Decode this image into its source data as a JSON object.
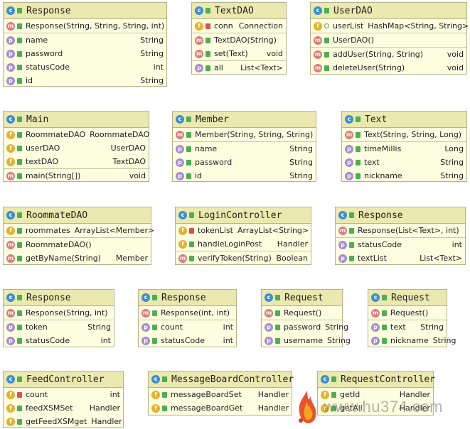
{
  "classes": {
    "response1": {
      "name": "Response",
      "rows": [
        {
          "icon": "m",
          "vis": "pub",
          "name": "Response(String, String, String, int)",
          "type": ""
        },
        {
          "icon": "p",
          "vis": "pub",
          "name": "name",
          "type": "String"
        },
        {
          "icon": "p",
          "vis": "pub",
          "name": "password",
          "type": "String"
        },
        {
          "icon": "p",
          "vis": "pub",
          "name": "statusCode",
          "type": "int"
        },
        {
          "icon": "p",
          "vis": "pub",
          "name": "id",
          "type": "String"
        }
      ]
    },
    "textdao": {
      "name": "TextDAO",
      "rows": [
        {
          "icon": "f",
          "vis": "priv",
          "name": "conn",
          "type": "Connection"
        },
        {
          "icon": "m",
          "vis": "pub",
          "name": "TextDAO(String)",
          "type": ""
        },
        {
          "icon": "m",
          "vis": "pub",
          "name": "set(Text)",
          "type": "void"
        },
        {
          "icon": "p",
          "vis": "pub",
          "name": "all",
          "type": "List<Text>"
        }
      ]
    },
    "userdao": {
      "name": "UserDAO",
      "rows": [
        {
          "icon": "f",
          "vis": "pkg",
          "name": "userList",
          "type": "HashMap<String, String>"
        },
        {
          "icon": "m",
          "vis": "pub",
          "name": "UserDAO()",
          "type": ""
        },
        {
          "icon": "m",
          "vis": "pub",
          "name": "addUser(String, String)",
          "type": "void"
        },
        {
          "icon": "m",
          "vis": "pub",
          "name": "deleteUser(String)",
          "type": "void"
        }
      ]
    },
    "main": {
      "name": "Main",
      "rows": [
        {
          "icon": "f",
          "vis": "pub",
          "name": "RoommateDAO",
          "type": "RoommateDAO"
        },
        {
          "icon": "f",
          "vis": "pub",
          "name": "userDAO",
          "type": "UserDAO"
        },
        {
          "icon": "f",
          "vis": "pub",
          "name": "textDAO",
          "type": "TextDAO"
        },
        {
          "icon": "m",
          "vis": "pub",
          "name": "main(String[])",
          "type": "void"
        }
      ]
    },
    "member": {
      "name": "Member",
      "rows": [
        {
          "icon": "m",
          "vis": "pub",
          "name": "Member(String, String, String)",
          "type": ""
        },
        {
          "icon": "p",
          "vis": "pub",
          "name": "name",
          "type": "String"
        },
        {
          "icon": "p",
          "vis": "pub",
          "name": "password",
          "type": "String"
        },
        {
          "icon": "p",
          "vis": "pub",
          "name": "id",
          "type": "String"
        }
      ]
    },
    "text": {
      "name": "Text",
      "rows": [
        {
          "icon": "m",
          "vis": "pub",
          "name": "Text(String, String, Long)",
          "type": ""
        },
        {
          "icon": "p",
          "vis": "pub",
          "name": "timeMillis",
          "type": "Long"
        },
        {
          "icon": "p",
          "vis": "pub",
          "name": "text",
          "type": "String"
        },
        {
          "icon": "p",
          "vis": "pub",
          "name": "nickname",
          "type": "String"
        }
      ]
    },
    "roommatedao": {
      "name": "RoommateDAO",
      "rows": [
        {
          "icon": "f",
          "vis": "pub",
          "name": "roommates",
          "type": "ArrayList<Member>"
        },
        {
          "icon": "m",
          "vis": "pub",
          "name": "RoommateDAO()",
          "type": ""
        },
        {
          "icon": "m",
          "vis": "pub",
          "name": "getByName(String)",
          "type": "Member"
        }
      ]
    },
    "logincontroller": {
      "name": "LoginController",
      "rows": [
        {
          "icon": "f",
          "vis": "priv",
          "name": "tokenList",
          "type": "ArrayList<String>"
        },
        {
          "icon": "f",
          "vis": "pub",
          "name": "handleLoginPost",
          "type": "Handler"
        },
        {
          "icon": "m",
          "vis": "pub",
          "name": "verifyToken(String)",
          "type": "Boolean"
        }
      ]
    },
    "response2": {
      "name": "Response",
      "rows": [
        {
          "icon": "m",
          "vis": "pub",
          "name": "Response(List<Text>, int)",
          "type": ""
        },
        {
          "icon": "p",
          "vis": "pub",
          "name": "statusCode",
          "type": "int"
        },
        {
          "icon": "p",
          "vis": "pub",
          "name": "textList",
          "type": "List<Text>"
        }
      ]
    },
    "response3": {
      "name": "Response",
      "rows": [
        {
          "icon": "m",
          "vis": "pub",
          "name": "Response(String, int)",
          "type": ""
        },
        {
          "icon": "p",
          "vis": "pub",
          "name": "token",
          "type": "String"
        },
        {
          "icon": "p",
          "vis": "pub",
          "name": "statusCode",
          "type": "int"
        }
      ]
    },
    "response4": {
      "name": "Response",
      "rows": [
        {
          "icon": "m",
          "vis": "pub",
          "name": "Response(int, int)",
          "type": ""
        },
        {
          "icon": "p",
          "vis": "pub",
          "name": "count",
          "type": "int"
        },
        {
          "icon": "p",
          "vis": "pub",
          "name": "statusCode",
          "type": "int"
        }
      ]
    },
    "request1": {
      "name": "Request",
      "rows": [
        {
          "icon": "m",
          "vis": "pub",
          "name": "Request()",
          "type": ""
        },
        {
          "icon": "p",
          "vis": "pub",
          "name": "password",
          "type": "String"
        },
        {
          "icon": "p",
          "vis": "pub",
          "name": "username",
          "type": "String"
        }
      ]
    },
    "request2": {
      "name": "Request",
      "rows": [
        {
          "icon": "m",
          "vis": "pub",
          "name": "Request()",
          "type": ""
        },
        {
          "icon": "p",
          "vis": "pub",
          "name": "text",
          "type": "String"
        },
        {
          "icon": "p",
          "vis": "pub",
          "name": "nickname",
          "type": "String"
        }
      ]
    },
    "feedcontroller": {
      "name": "FeedController",
      "rows": [
        {
          "icon": "f",
          "vis": "priv",
          "name": "count",
          "type": "int"
        },
        {
          "icon": "f",
          "vis": "pub",
          "name": "feedXSMSet",
          "type": "Handler"
        },
        {
          "icon": "f",
          "vis": "pub",
          "name": "getFeedXSMget",
          "type": "Handler"
        }
      ]
    },
    "messageboardcontroller": {
      "name": "MessageBoardController",
      "rows": [
        {
          "icon": "f",
          "vis": "pub",
          "name": "messageBoardSet",
          "type": "Handler"
        },
        {
          "icon": "f",
          "vis": "pub",
          "name": "messageBoardGet",
          "type": "Handler"
        }
      ]
    },
    "requestcontroller": {
      "name": "RequestController",
      "rows": [
        {
          "icon": "f",
          "vis": "pub",
          "name": "getId",
          "type": "Handler"
        },
        {
          "icon": "f",
          "vis": "pub",
          "name": "getAll",
          "type": "Handler"
        }
      ]
    }
  },
  "watermark": {
    "text": "www.hu374.com",
    "icon": "flame-logo-icon"
  }
}
